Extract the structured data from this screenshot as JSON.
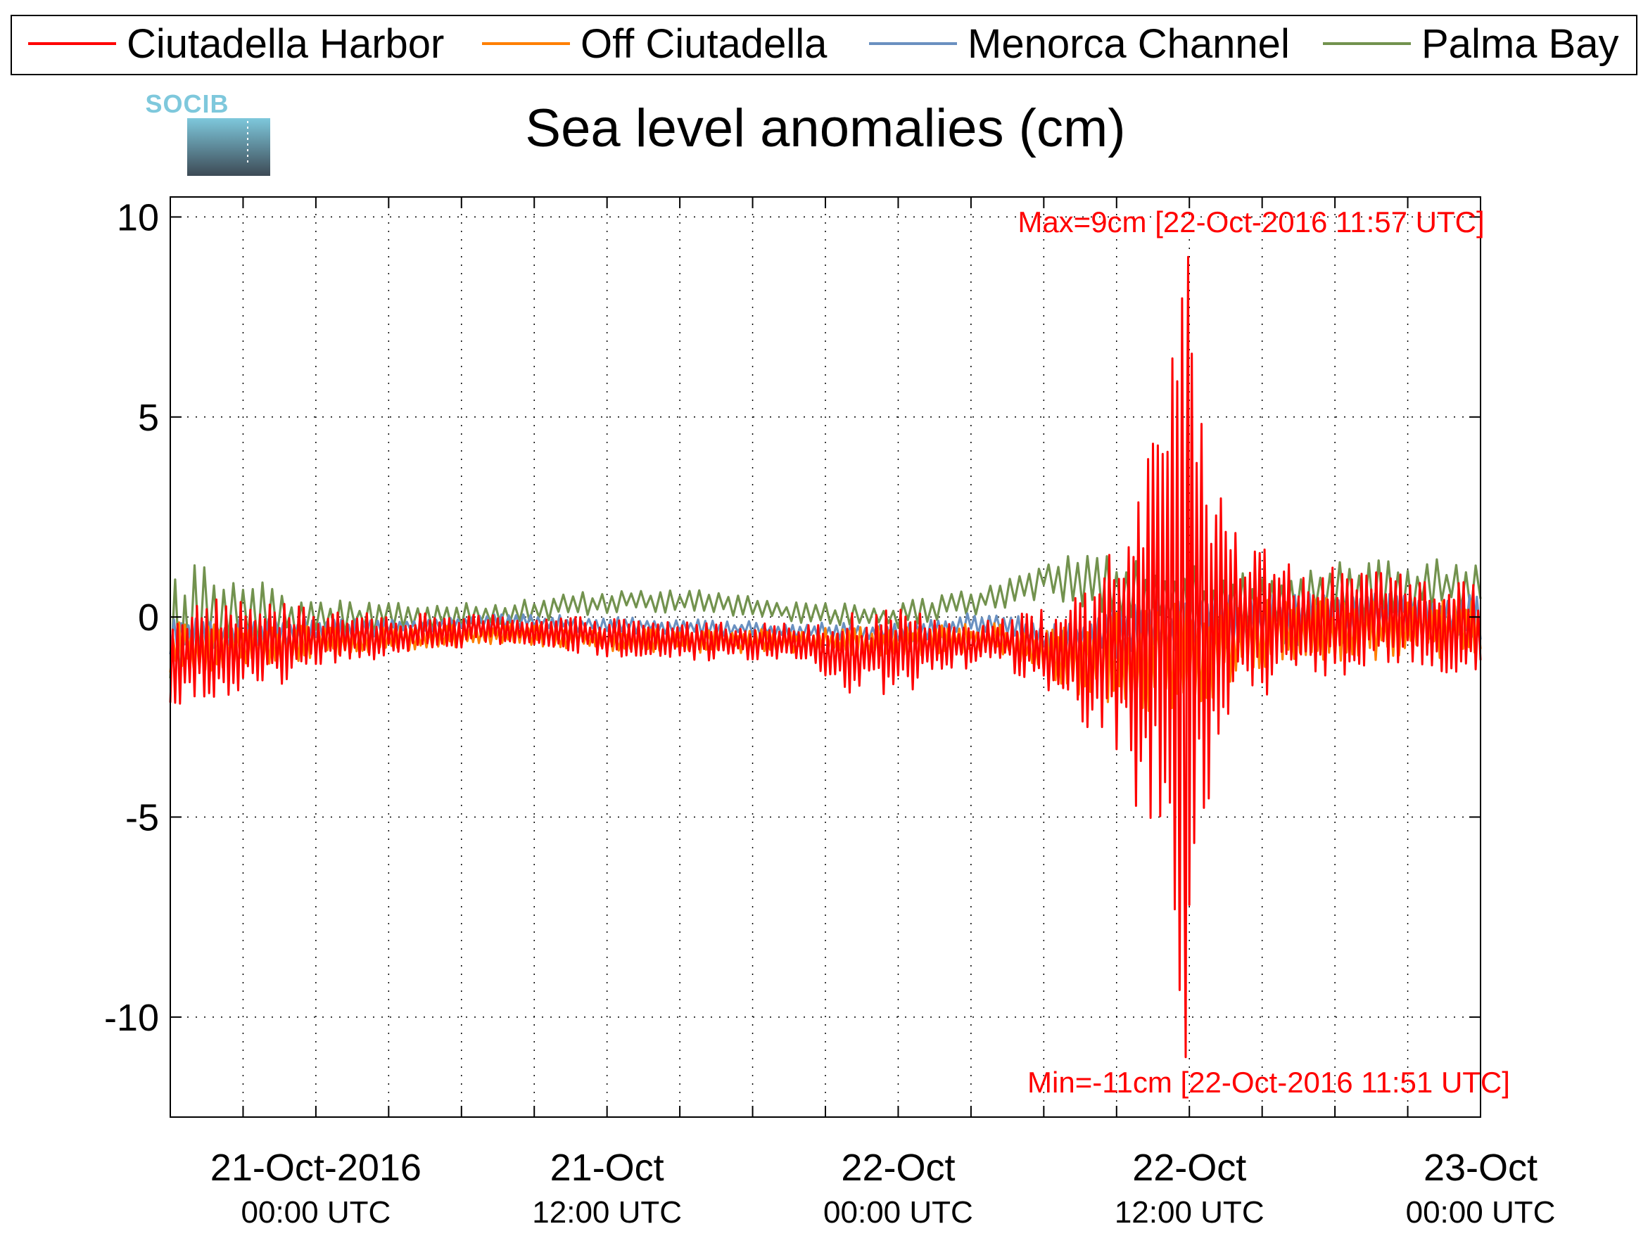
{
  "colors": {
    "ciutadella_harbor": "#ff0000",
    "off_ciutadella": "#ff7f00",
    "menorca_channel": "#6a90c0",
    "palma_bay": "#72924e",
    "logo_top": "#7ec8dc",
    "logo_bottom": "#3d4a55"
  },
  "logo": {
    "text": "SOCIB"
  },
  "chart_data": {
    "type": "line",
    "title": "Sea level anomalies (cm)",
    "xlabel": "",
    "ylabel": "",
    "x_unit": "hours since 21-Oct-2016 00:00 UTC",
    "xlim": [
      -6,
      48
    ],
    "ylim": [
      -12.5,
      10.5
    ],
    "yticks": [
      10,
      5,
      0,
      -5,
      -10
    ],
    "ytick_labels": [
      "10",
      "5",
      "0",
      "-5",
      "-10"
    ],
    "xticks": [
      {
        "x": 0,
        "line1": "21-Oct-2016",
        "line2": "00:00 UTC"
      },
      {
        "x": 12,
        "line1": "21-Oct",
        "line2": "12:00 UTC"
      },
      {
        "x": 24,
        "line1": "22-Oct",
        "line2": "00:00 UTC"
      },
      {
        "x": 36,
        "line1": "22-Oct",
        "line2": "12:00 UTC"
      },
      {
        "x": 48,
        "line1": "23-Oct",
        "line2": "00:00 UTC"
      }
    ],
    "xgrid_minor": [
      -3,
      3,
      6,
      9,
      15,
      18,
      21,
      27,
      30,
      33,
      39,
      42,
      45
    ],
    "grid": true,
    "legend_position": "top",
    "annotations": {
      "max": {
        "text": "Max=9cm [22-Oct-2016 11:57 UTC]",
        "x": 35.95,
        "y": 9
      },
      "min": {
        "text": "Min=-11cm [22-Oct-2016 11:51 UTC]",
        "x": 35.85,
        "y": -11
      }
    },
    "series": [
      {
        "name": "Ciutadella Harbor",
        "color_key": "ciutadella_harbor",
        "sample_step": 0.1,
        "x": [
          -6,
          -4,
          -2,
          0,
          2,
          4,
          8,
          12,
          16,
          20,
          22,
          24,
          26,
          28,
          30,
          32,
          33,
          34,
          35,
          35.85,
          35.95,
          36.5,
          37,
          38,
          40,
          44,
          48
        ],
        "center": [
          -1.0,
          -0.8,
          -0.7,
          -0.6,
          -0.5,
          -0.4,
          -0.3,
          -0.5,
          -0.6,
          -0.6,
          -0.9,
          -0.9,
          -0.7,
          -0.6,
          -0.8,
          -1.1,
          -0.7,
          -0.6,
          -0.5,
          -1.0,
          0.5,
          -0.5,
          -0.3,
          -0.2,
          -0.2,
          -0.1,
          -0.3
        ],
        "amplitude": [
          1.4,
          1.3,
          1.1,
          0.8,
          0.6,
          0.5,
          0.35,
          0.5,
          0.5,
          0.45,
          1.0,
          1.1,
          0.7,
          0.6,
          1.0,
          1.8,
          2.8,
          4.5,
          6.0,
          9.5,
          8.5,
          6.0,
          4.0,
          2.5,
          1.6,
          1.2,
          1.2
        ],
        "max": 9,
        "min": -11
      },
      {
        "name": "Off Ciutadella",
        "color_key": "off_ciutadella",
        "sample_step": 0.12,
        "x": [
          -6,
          -2,
          2,
          8,
          12,
          20,
          24,
          28,
          30,
          32,
          34,
          36,
          38,
          42,
          48
        ],
        "center": [
          -0.8,
          -0.7,
          -0.6,
          -0.4,
          -0.6,
          -0.6,
          -0.6,
          -0.5,
          -0.9,
          -1.1,
          -1.0,
          -0.9,
          -0.5,
          -0.3,
          -0.3
        ],
        "amplitude": [
          0.7,
          0.5,
          0.35,
          0.25,
          0.3,
          0.3,
          0.4,
          0.35,
          0.6,
          1.1,
          1.4,
          1.6,
          1.0,
          0.8,
          0.7
        ]
      },
      {
        "name": "Menorca Channel",
        "color_key": "menorca_channel",
        "sample_step": 0.15,
        "x": [
          -6,
          -2,
          2,
          8,
          12,
          18,
          24,
          28,
          30,
          32,
          34,
          36,
          40,
          44,
          48
        ],
        "center": [
          -0.5,
          -0.4,
          -0.3,
          -0.1,
          -0.2,
          -0.3,
          -0.4,
          -0.1,
          -0.5,
          -0.6,
          -0.3,
          -0.4,
          -0.1,
          0.0,
          0.0
        ],
        "amplitude": [
          0.5,
          0.35,
          0.25,
          0.2,
          0.2,
          0.2,
          0.25,
          0.3,
          0.35,
          0.6,
          0.8,
          0.9,
          0.7,
          0.6,
          0.6
        ]
      },
      {
        "name": "Palma Bay",
        "color_key": "palma_bay",
        "sample_step": 0.2,
        "x": [
          -6,
          -4,
          -2,
          0,
          4,
          8,
          12,
          16,
          20,
          24,
          26,
          28,
          30,
          32,
          34,
          36,
          38,
          42,
          48
        ],
        "center": [
          -0.2,
          0.2,
          0.0,
          0.0,
          0.0,
          0.1,
          0.4,
          0.4,
          0.1,
          0.0,
          0.3,
          0.5,
          1.0,
          0.9,
          0.5,
          0.3,
          0.3,
          0.6,
          0.8
        ],
        "amplitude": [
          1.5,
          1.3,
          0.8,
          0.5,
          0.35,
          0.3,
          0.3,
          0.3,
          0.25,
          0.35,
          0.35,
          0.4,
          0.5,
          0.7,
          0.9,
          1.0,
          0.9,
          0.8,
          0.7
        ]
      }
    ]
  }
}
